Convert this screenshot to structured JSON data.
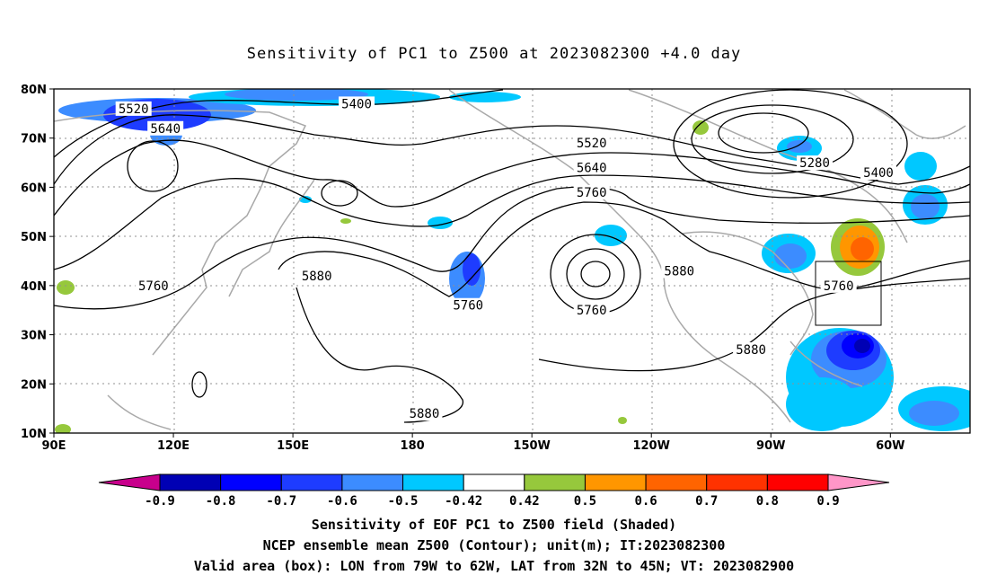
{
  "title": "Sensitivity of PC1 to Z500 at 2023082300 +4.0 day",
  "lat_labels": [
    "80N",
    "70N",
    "60N",
    "50N",
    "40N",
    "30N",
    "20N",
    "10N"
  ],
  "lon_labels": [
    "90E",
    "120E",
    "150E",
    "180",
    "150W",
    "120W",
    "90W",
    "60W"
  ],
  "contour_labels": [
    {
      "text": "5520",
      "lon": 110,
      "lat": 76
    },
    {
      "text": "5640",
      "lon": 118,
      "lat": 72
    },
    {
      "text": "5400",
      "lon": 166,
      "lat": 77
    },
    {
      "text": "5520",
      "lon": -135,
      "lat": 69
    },
    {
      "text": "5640",
      "lon": -135,
      "lat": 64
    },
    {
      "text": "5760",
      "lon": -135,
      "lat": 59
    },
    {
      "text": "5280",
      "lon": -79,
      "lat": 65
    },
    {
      "text": "5400",
      "lon": -63,
      "lat": 63
    },
    {
      "text": "5880",
      "lon": -113,
      "lat": 43
    },
    {
      "text": "5880",
      "lon": 156,
      "lat": 42
    },
    {
      "text": "5760",
      "lon": 115,
      "lat": 40
    },
    {
      "text": "5760",
      "lon": -166,
      "lat": 36
    },
    {
      "text": "5760",
      "lon": -135,
      "lat": 35
    },
    {
      "text": "5760",
      "lon": -73,
      "lat": 40
    },
    {
      "text": "5880",
      "lon": -95,
      "lat": 27
    },
    {
      "text": "5880",
      "lon": 183,
      "lat": 14
    }
  ],
  "colorbar": {
    "labels": [
      "-0.9",
      "-0.8",
      "-0.7",
      "-0.6",
      "-0.5",
      "-0.42",
      "0.42",
      "0.5",
      "0.6",
      "0.7",
      "0.8",
      "0.9"
    ],
    "colors": [
      "#c8008c",
      "#0000b4",
      "#0000ff",
      "#1e3cff",
      "#3c8cff",
      "#00c8ff",
      "#ffffff",
      "#96c83c",
      "#ff9600",
      "#ff6400",
      "#ff3200",
      "#ff0000",
      "#ff96c8"
    ]
  },
  "captions": [
    "Sensitivity of EOF PC1 to Z500 field (Shaded)",
    "NCEP ensemble mean Z500 (Contour); unit(m); IT:2023082300",
    "Valid area (box): LON from 79W to 62W, LAT from 32N to 45N; VT: 2023082900"
  ],
  "valid_box": {
    "lon_min": -79,
    "lon_max": -62,
    "lat_min": 32,
    "lat_max": 45
  }
}
